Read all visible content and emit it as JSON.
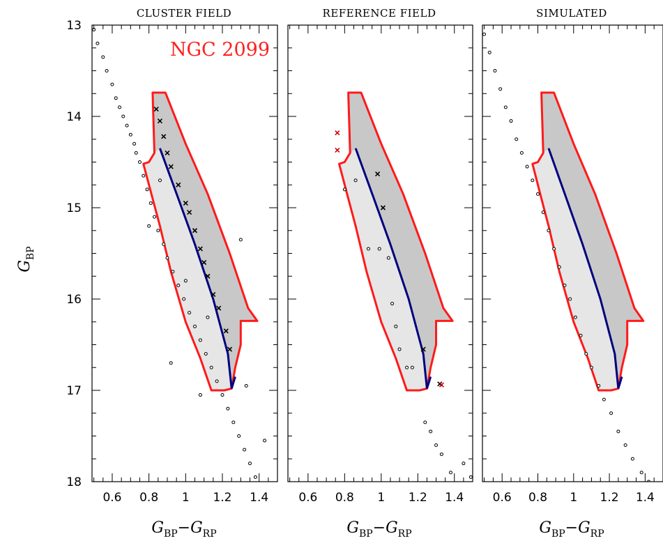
{
  "chart_data": [
    {
      "type": "scatter",
      "title": "CLUSTER FIELD",
      "annotation": "NGC 2099",
      "xlabel": "G_BP−G_RP",
      "ylabel": "G_BP",
      "xlim": [
        0.49,
        1.5
      ],
      "ylim": [
        18,
        13
      ],
      "xticks": [
        "0.6",
        "0.8",
        "1",
        "1.2",
        "1.4"
      ],
      "yticks": [
        "13",
        "14",
        "15",
        "16",
        "17",
        "18"
      ],
      "polygon_color": "#ff1a1a",
      "fiducial_color": "#000080",
      "points": [
        [
          0.5,
          13.05
        ],
        [
          0.52,
          13.2
        ],
        [
          0.55,
          13.35
        ],
        [
          0.57,
          13.5
        ],
        [
          0.6,
          13.65
        ],
        [
          0.62,
          13.8
        ],
        [
          0.64,
          13.9
        ],
        [
          0.66,
          14.0
        ],
        [
          0.68,
          14.1
        ],
        [
          0.7,
          14.2
        ],
        [
          0.72,
          14.3
        ],
        [
          0.73,
          14.4
        ],
        [
          0.75,
          14.5
        ],
        [
          0.77,
          14.65
        ],
        [
          0.79,
          14.8
        ],
        [
          0.81,
          14.95
        ],
        [
          0.83,
          15.1
        ],
        [
          0.85,
          15.25
        ],
        [
          0.88,
          15.4
        ],
        [
          0.9,
          15.55
        ],
        [
          0.93,
          15.7
        ],
        [
          0.96,
          15.85
        ],
        [
          0.99,
          16.0
        ],
        [
          1.02,
          16.15
        ],
        [
          1.05,
          16.3
        ],
        [
          1.08,
          16.45
        ],
        [
          1.11,
          16.6
        ],
        [
          1.14,
          16.75
        ],
        [
          1.17,
          16.9
        ],
        [
          1.2,
          17.05
        ],
        [
          1.23,
          17.2
        ],
        [
          1.26,
          17.35
        ],
        [
          1.29,
          17.5
        ],
        [
          1.32,
          17.65
        ],
        [
          1.35,
          17.8
        ],
        [
          1.38,
          17.95
        ],
        [
          0.8,
          15.2
        ],
        [
          0.92,
          16.7
        ],
        [
          1.08,
          17.05
        ],
        [
          1.3,
          15.35
        ],
        [
          1.33,
          16.95
        ],
        [
          1.43,
          17.55
        ],
        [
          0.86,
          14.7
        ],
        [
          1.0,
          15.8
        ],
        [
          1.12,
          16.2
        ]
      ],
      "crosses": [
        [
          0.84,
          13.92
        ],
        [
          0.86,
          14.05
        ],
        [
          0.88,
          14.22
        ],
        [
          0.9,
          14.4
        ],
        [
          0.92,
          14.55
        ],
        [
          0.96,
          14.75
        ],
        [
          1.0,
          14.95
        ],
        [
          1.02,
          15.05
        ],
        [
          1.05,
          15.25
        ],
        [
          1.08,
          15.45
        ],
        [
          1.1,
          15.6
        ],
        [
          1.12,
          15.75
        ],
        [
          1.15,
          15.95
        ],
        [
          1.18,
          16.1
        ],
        [
          1.22,
          16.35
        ],
        [
          1.24,
          16.55
        ]
      ]
    },
    {
      "type": "scatter",
      "title": "REFERENCE FIELD",
      "xlabel": "G_BP−G_RP",
      "xlim": [
        0.49,
        1.5
      ],
      "ylim": [
        18,
        13
      ],
      "xticks": [
        "0.6",
        "0.8",
        "1",
        "1.2",
        "1.4"
      ],
      "points": [
        [
          0.8,
          14.8
        ],
        [
          0.86,
          14.7
        ],
        [
          0.93,
          15.45
        ],
        [
          0.99,
          15.45
        ],
        [
          1.04,
          15.55
        ],
        [
          1.06,
          16.05
        ],
        [
          1.08,
          16.3
        ],
        [
          1.1,
          16.55
        ],
        [
          1.14,
          16.75
        ],
        [
          1.17,
          16.75
        ],
        [
          1.24,
          17.35
        ],
        [
          1.27,
          17.45
        ],
        [
          1.3,
          17.6
        ],
        [
          1.33,
          17.7
        ],
        [
          1.38,
          17.9
        ],
        [
          1.45,
          17.8
        ],
        [
          1.49,
          17.95
        ]
      ],
      "crosses": [
        [
          0.98,
          14.63
        ],
        [
          1.01,
          15.0
        ],
        [
          1.23,
          16.55
        ],
        [
          1.32,
          16.93
        ]
      ],
      "red_crosses": [
        [
          0.76,
          14.18
        ],
        [
          0.76,
          14.37
        ],
        [
          1.33,
          16.94
        ]
      ]
    },
    {
      "type": "scatter",
      "title": "SIMULATED",
      "xlabel": "G_BP−G_RP",
      "xlim": [
        0.49,
        1.5
      ],
      "ylim": [
        18,
        13
      ],
      "xticks": [
        "0.6",
        "0.8",
        "1",
        "1.2",
        "1.4"
      ],
      "points": [
        [
          0.5,
          13.1
        ],
        [
          0.53,
          13.3
        ],
        [
          0.56,
          13.5
        ],
        [
          0.59,
          13.7
        ],
        [
          0.62,
          13.9
        ],
        [
          0.65,
          14.05
        ],
        [
          0.68,
          14.25
        ],
        [
          0.71,
          14.4
        ],
        [
          0.74,
          14.55
        ],
        [
          0.77,
          14.7
        ],
        [
          0.8,
          14.85
        ],
        [
          0.83,
          15.05
        ],
        [
          0.86,
          15.25
        ],
        [
          0.89,
          15.45
        ],
        [
          0.92,
          15.65
        ],
        [
          0.95,
          15.85
        ],
        [
          0.98,
          16.0
        ],
        [
          1.01,
          16.2
        ],
        [
          1.04,
          16.4
        ],
        [
          1.07,
          16.6
        ],
        [
          1.1,
          16.75
        ],
        [
          1.14,
          16.95
        ],
        [
          1.17,
          17.1
        ],
        [
          1.21,
          17.25
        ],
        [
          1.25,
          17.45
        ],
        [
          1.29,
          17.6
        ],
        [
          1.33,
          17.75
        ],
        [
          1.38,
          17.9
        ],
        [
          1.42,
          18.0
        ]
      ]
    }
  ]
}
